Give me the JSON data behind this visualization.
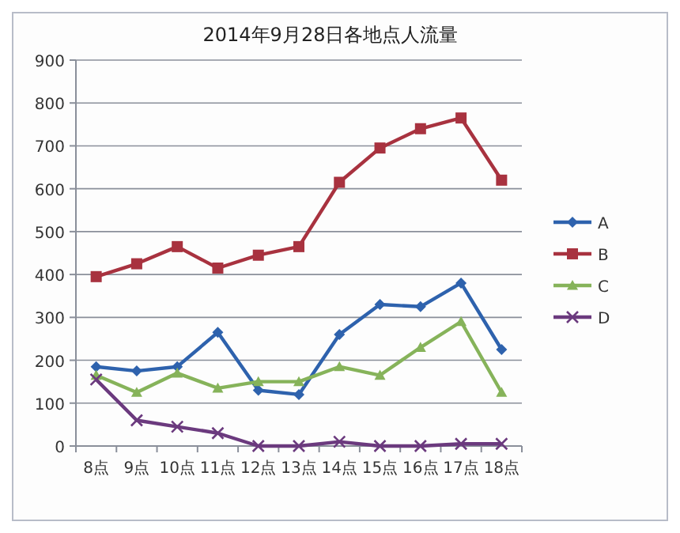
{
  "chart_data": {
    "type": "line",
    "title": "2014年9月28日各地点人流量",
    "categories": [
      "8点",
      "9点",
      "10点",
      "11点",
      "12点",
      "13点",
      "14点",
      "15点",
      "16点",
      "17点",
      "18点"
    ],
    "series": [
      {
        "name": "A",
        "color": "#2e62ad",
        "marker": "diamond",
        "values": [
          185,
          175,
          185,
          265,
          130,
          120,
          260,
          330,
          325,
          380,
          225
        ]
      },
      {
        "name": "B",
        "color": "#a8323f",
        "marker": "square",
        "values": [
          395,
          425,
          465,
          415,
          445,
          465,
          615,
          695,
          740,
          765,
          620
        ]
      },
      {
        "name": "C",
        "color": "#86b35a",
        "marker": "triangle",
        "values": [
          165,
          125,
          170,
          135,
          150,
          150,
          185,
          165,
          230,
          290,
          125
        ]
      },
      {
        "name": "D",
        "color": "#6b3a7e",
        "marker": "cross",
        "values": [
          155,
          60,
          45,
          30,
          0,
          0,
          10,
          0,
          0,
          5,
          5
        ]
      }
    ],
    "ylim": [
      0,
      900
    ],
    "yticks": [
      0,
      100,
      200,
      300,
      400,
      500,
      600,
      700,
      800,
      900
    ],
    "grid": "y",
    "legend": "right"
  }
}
